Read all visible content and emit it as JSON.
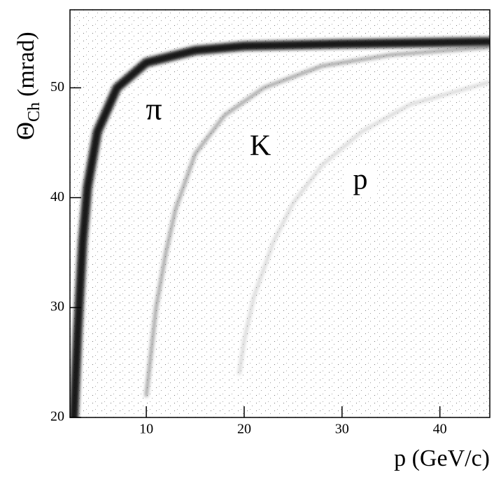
{
  "chart_data": {
    "type": "line",
    "x_label": "p (GeV/c)",
    "y_label": "Θ",
    "y_label_sub": "Ch",
    "y_label_unit": "(mrad)",
    "xlim": [
      2.2,
      45.1
    ],
    "xticks": [
      10,
      20,
      30,
      40
    ],
    "ylim": [
      20,
      57.1
    ],
    "yticks": [
      20,
      30,
      40,
      50
    ],
    "series": [
      {
        "name": "π",
        "color": "#000000",
        "x": [
          2.6,
          3,
          3.5,
          4,
          5,
          7,
          10,
          15,
          20,
          30,
          45
        ],
        "values": [
          20,
          28,
          36,
          41,
          46,
          50,
          52.3,
          53.4,
          53.8,
          54,
          54.2
        ]
      },
      {
        "name": "K",
        "color": "#555555",
        "x": [
          10,
          10.5,
          11,
          12,
          13,
          15,
          18,
          22,
          28,
          35,
          45
        ],
        "values": [
          22,
          26,
          30,
          35,
          39,
          44,
          47.5,
          50,
          52,
          53,
          53.7
        ]
      },
      {
        "name": "p",
        "color": "#999999",
        "x": [
          19.5,
          20,
          21,
          23,
          25,
          28,
          32,
          37,
          45
        ],
        "values": [
          24,
          27,
          31,
          36,
          39.5,
          43,
          46,
          48.5,
          50.5
        ]
      }
    ]
  }
}
